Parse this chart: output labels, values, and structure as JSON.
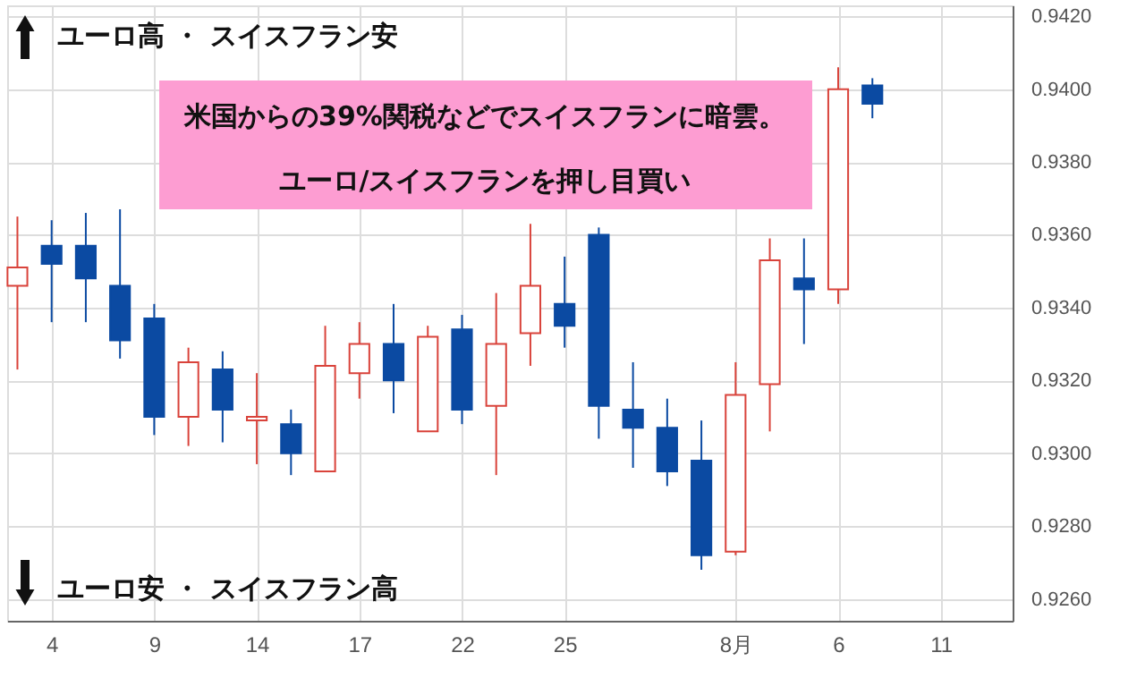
{
  "chart_data": {
    "type": "candlestick",
    "categories": [
      null,
      "4",
      null,
      null,
      "9",
      null,
      null,
      "14",
      null,
      null,
      "17",
      null,
      null,
      "22",
      null,
      null,
      "25",
      null,
      null,
      null,
      null,
      "8月",
      null,
      null,
      "6",
      null,
      null,
      "11",
      null,
      null
    ],
    "ohlc": [
      [
        0.9346,
        0.9365,
        0.9323,
        0.9351
      ],
      [
        0.9357,
        0.9364,
        0.9336,
        0.9352
      ],
      [
        0.9357,
        0.9366,
        0.9336,
        0.9348
      ],
      [
        0.9346,
        0.9367,
        0.9326,
        0.9331
      ],
      [
        0.9337,
        0.9341,
        0.9305,
        0.931
      ],
      [
        0.931,
        0.9329,
        0.9302,
        0.9325
      ],
      [
        0.9323,
        0.9328,
        0.9303,
        0.9312
      ],
      [
        0.9309,
        0.9322,
        0.9297,
        0.931
      ],
      [
        0.9308,
        0.9312,
        0.9294,
        0.93
      ],
      [
        0.9295,
        0.9335,
        0.9295,
        0.9324
      ],
      [
        0.9322,
        0.9336,
        0.9315,
        0.933
      ],
      [
        0.933,
        0.9341,
        0.9311,
        0.932
      ],
      [
        0.9306,
        0.9335,
        0.9306,
        0.9332
      ],
      [
        0.9334,
        0.9338,
        0.9308,
        0.9312
      ],
      [
        0.9313,
        0.9344,
        0.9294,
        0.933
      ],
      [
        0.9333,
        0.9363,
        0.9324,
        0.9346
      ],
      [
        0.9341,
        0.9354,
        0.9329,
        0.9335
      ],
      [
        0.936,
        0.9362,
        0.9304,
        0.9313
      ],
      [
        0.9312,
        0.9325,
        0.9296,
        0.9307
      ],
      [
        0.9307,
        0.9315,
        0.9291,
        0.9295
      ],
      [
        0.9298,
        0.9309,
        0.9268,
        0.9272
      ],
      [
        0.9273,
        0.9325,
        0.9272,
        0.9316
      ],
      [
        0.9319,
        0.9359,
        0.9306,
        0.9353
      ],
      [
        0.9348,
        0.9359,
        0.933,
        0.9345
      ],
      [
        0.9345,
        0.9406,
        0.9341,
        0.94
      ],
      [
        0.9401,
        0.9403,
        0.9392,
        0.9396
      ],
      null,
      null,
      null,
      null
    ],
    "colors": [
      "#d9433b",
      "#0b4aa2",
      "#0b4aa2",
      "#0b4aa2",
      "#0b4aa2",
      "#d9433b",
      "#0b4aa2",
      "#d9433b",
      "#0b4aa2",
      "#d9433b",
      "#d9433b",
      "#0b4aa2",
      "#d9433b",
      "#0b4aa2",
      "#d9433b",
      "#d9433b",
      "#0b4aa2",
      "#0b4aa2",
      "#0b4aa2",
      "#0b4aa2",
      "#0b4aa2",
      "#d9433b",
      "#d9433b",
      "#0b4aa2",
      "#d9433b",
      "#0b4aa2",
      null,
      null,
      null,
      null
    ],
    "ylim": [
      0.9254,
      0.9423
    ],
    "yticks": [
      {
        "value": 0.926,
        "label": "0.9260"
      },
      {
        "value": 0.928,
        "label": "0.9280"
      },
      {
        "value": 0.93,
        "label": "0.9300"
      },
      {
        "value": 0.932,
        "label": "0.9320"
      },
      {
        "value": 0.934,
        "label": "0.9340"
      },
      {
        "value": 0.936,
        "label": "0.9360"
      },
      {
        "value": 0.938,
        "label": "0.9380"
      },
      {
        "value": 0.94,
        "label": "0.9400"
      },
      {
        "value": 0.942,
        "label": "0.9420"
      }
    ],
    "grid": true,
    "annotations": [
      "ユーロ高 ・ スイスフラン安",
      "ユーロ安 ・ スイスフラン高",
      "米国からの39%関税などでスイスフランに暗雲。",
      "ユーロ/スイスフランを押し目買い"
    ]
  }
}
